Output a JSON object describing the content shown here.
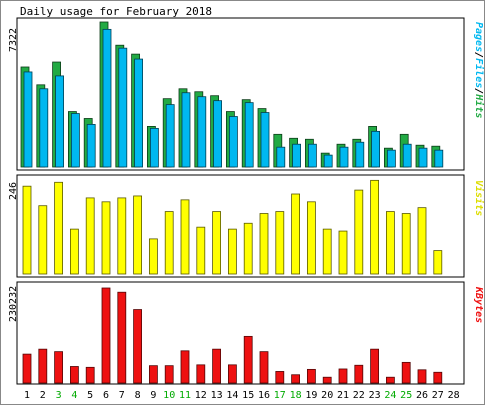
{
  "chart_data": {
    "type": "bar",
    "title": "Daily usage for February 2018",
    "categories": [
      "1",
      "2",
      "3",
      "4",
      "5",
      "6",
      "7",
      "8",
      "9",
      "10",
      "11",
      "12",
      "13",
      "14",
      "15",
      "16",
      "17",
      "18",
      "19",
      "20",
      "21",
      "22",
      "23",
      "24",
      "25",
      "26",
      "27",
      "28"
    ],
    "weekend_days": [
      "3",
      "4",
      "10",
      "11",
      "17",
      "18",
      "24",
      "25"
    ],
    "panels": {
      "hits": {
        "scale_label": "7322",
        "ymax": 7322,
        "legend": [
          "Pages",
          "/",
          "Files",
          "/",
          "Hits"
        ],
        "series": [
          {
            "name": "Hits",
            "color": "#22aa44",
            "values": [
              5050,
              4150,
              5300,
              2800,
              2450,
              7322,
              6150,
              5700,
              2050,
              3450,
              3950,
              3800,
              3600,
              2800,
              3400,
              2950,
              1650,
              1450,
              1400,
              700,
              1150,
              1400,
              2050,
              950,
              1650,
              1100,
              1050,
              0
            ]
          },
          {
            "name": "Files",
            "color": "#00b8f0",
            "values": [
              4800,
              3950,
              4600,
              2700,
              2150,
              6950,
              6000,
              5450,
              1950,
              3150,
              3750,
              3550,
              3350,
              2550,
              3250,
              2750,
              1000,
              1150,
              1150,
              600,
              1000,
              1250,
              1800,
              850,
              1150,
              950,
              850,
              0
            ]
          }
        ]
      },
      "visits": {
        "scale_label": "246",
        "ymax": 246,
        "legend": [
          "Visits"
        ],
        "series": [
          {
            "name": "Visits",
            "color": "#ffff00",
            "values": [
              225,
              175,
              235,
              115,
              195,
              185,
              195,
              200,
              90,
              160,
              190,
              120,
              160,
              115,
              130,
              155,
              160,
              205,
              185,
              115,
              110,
              215,
              240,
              160,
              155,
              170,
              60,
              0
            ]
          }
        ]
      },
      "kbytes": {
        "scale_label": "230232",
        "ymax": 230232,
        "legend": [
          "KBytes"
        ],
        "series": [
          {
            "name": "KBytes",
            "color": "#ee1111",
            "values": [
              70000,
              82000,
              76000,
              40000,
              38000,
              230232,
              220000,
              178000,
              42000,
              42000,
              78000,
              44000,
              82000,
              44000,
              113000,
              76000,
              28000,
              20000,
              33000,
              14000,
              34000,
              43000,
              82000,
              14000,
              50000,
              32000,
              26000,
              0
            ]
          }
        ]
      }
    }
  }
}
